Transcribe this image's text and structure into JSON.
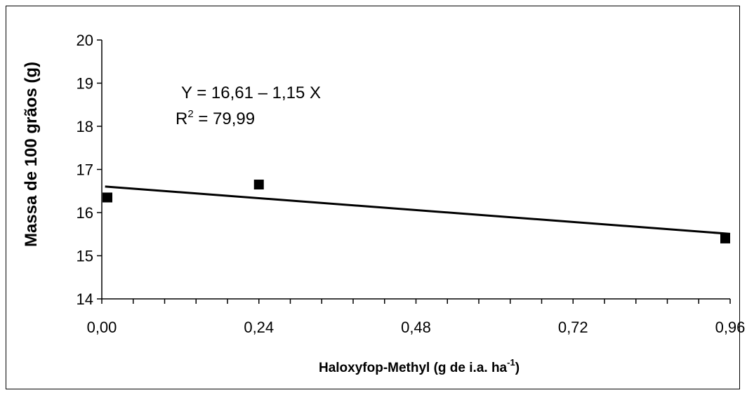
{
  "chart_data": {
    "type": "scatter",
    "title": "",
    "xlabel": "Haloxyfop-Methyl (g de i.a. ha",
    "xlabel_superscript": "-1",
    "xlabel_suffix": ")",
    "ylabel": "Massa de 100 grãos (g)",
    "xlim": [
      0,
      0.96
    ],
    "ylim": [
      14,
      20
    ],
    "x_ticks": [
      0,
      0.24,
      0.48,
      0.72,
      0.96
    ],
    "x_tick_labels": [
      "0,00",
      "0,24",
      "0,48",
      "0,72",
      "0,96"
    ],
    "x_minor_step": 0.048,
    "y_ticks": [
      14,
      15,
      16,
      17,
      18,
      19,
      20
    ],
    "y_tick_labels": [
      "14",
      "15",
      "16",
      "17",
      "18",
      "19",
      "20"
    ],
    "grid": false,
    "series": [
      {
        "points": [
          {
            "x": 0.0,
            "y": 16.35
          },
          {
            "x": 0.24,
            "y": 16.65
          },
          {
            "x": 0.96,
            "y": 15.4
          }
        ]
      }
    ],
    "trendline": {
      "intercept": 16.61,
      "slope": -1.15
    },
    "annotation": {
      "equation": "Y = 16,61 – 1,15 X",
      "r2_prefix": "R",
      "r2_superscript": "2",
      "r2_value": " = 79,99"
    }
  }
}
